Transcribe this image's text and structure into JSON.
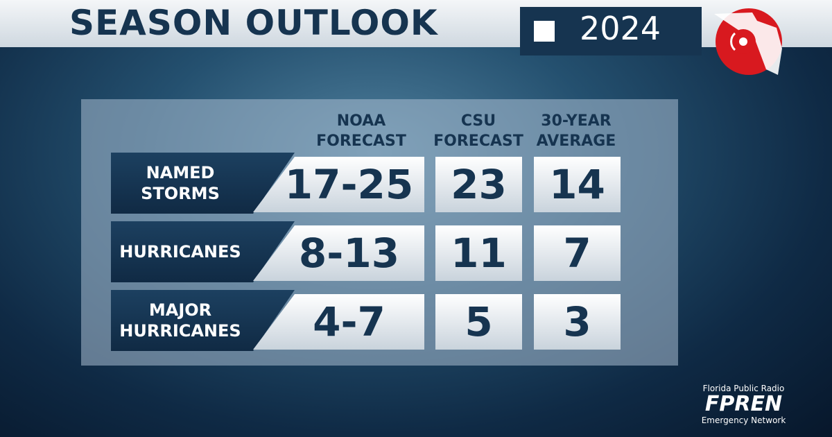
{
  "header": {
    "title": "SEASON OUTLOOK",
    "year": "2024"
  },
  "table": {
    "columns": [
      "NOAA FORECAST",
      "CSU FORECAST",
      "30-YEAR AVERAGE"
    ],
    "rows": [
      {
        "label": "NAMED STORMS",
        "values": [
          "17-25",
          "23",
          "14"
        ]
      },
      {
        "label": "HURRICANES",
        "values": [
          "8-13",
          "11",
          "7"
        ]
      },
      {
        "label": "MAJOR HURRICANES",
        "values": [
          "4-7",
          "5",
          "3"
        ]
      }
    ]
  },
  "footer": {
    "top": "Florida Public Radio",
    "brand": "FPREN",
    "bottom": "Emergency Network"
  }
}
